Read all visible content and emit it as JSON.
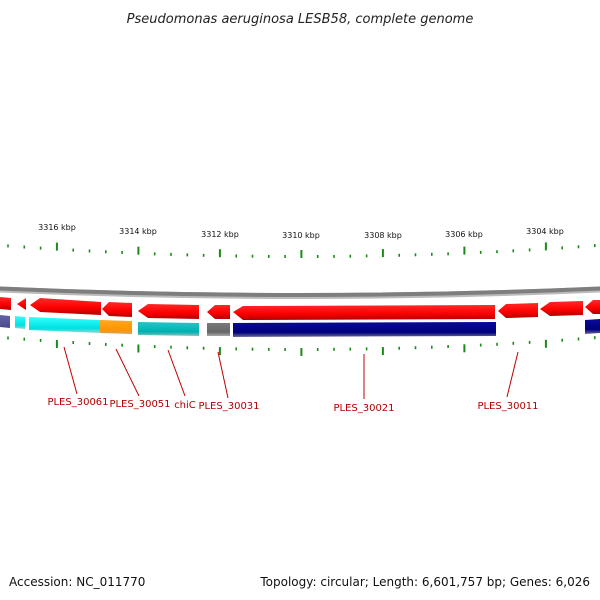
{
  "title": "Pseudomonas aeruginosa LESB58, complete genome",
  "footer": {
    "accession": "Accession: NC_011770",
    "summary": "Topology: circular; Length: 6,601,757 bp; Genes: 6,026"
  },
  "axis": {
    "ticks": [
      {
        "kbp": 3316,
        "label": "3316 kbp"
      },
      {
        "kbp": 3314,
        "label": "3314 kbp"
      },
      {
        "kbp": 3312,
        "label": "3312 kbp"
      },
      {
        "kbp": 3310,
        "label": "3310 kbp"
      },
      {
        "kbp": 3308,
        "label": "3308 kbp"
      },
      {
        "kbp": 3306,
        "label": "3306 kbp"
      },
      {
        "kbp": 3304,
        "label": "3304 kbp"
      }
    ]
  },
  "gene_labels": [
    {
      "id": "label-ples-30061",
      "text": "PLES_30061"
    },
    {
      "id": "label-ples-30051",
      "text": "PLES_30051"
    },
    {
      "id": "label-chic",
      "text": "chiC"
    },
    {
      "id": "label-ples-30031",
      "text": "PLES_30031"
    },
    {
      "id": "label-ples-30021",
      "text": "PLES_30021"
    },
    {
      "id": "label-ples-30011",
      "text": "PLES_30011"
    }
  ],
  "colors": {
    "cds": "#ff0000",
    "cds_dark": "#c80000",
    "backbone": "#888888",
    "tick": "#1a8a1a",
    "label": "#b00000",
    "navy": "#00007a",
    "cyan": "#00e5e5",
    "teal": "#00b3b3",
    "orange": "#ff9900",
    "grey": "#6e6e6e",
    "slate": "#5a5a9a"
  }
}
